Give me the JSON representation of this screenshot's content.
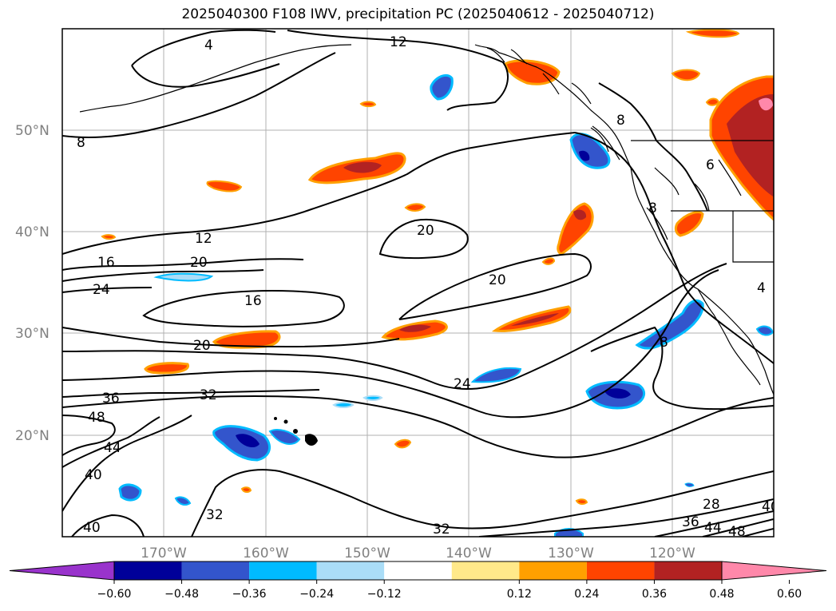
{
  "title": "2025040300 F108 IWV, precipitation PC (2025040612 - 2025040712)",
  "map": {
    "lon_range": [
      -180,
      -110
    ],
    "lat_range": [
      10,
      60
    ],
    "lat_gridlines": [
      {
        "value": 50,
        "label": "50°N"
      },
      {
        "value": 40,
        "label": "40°N"
      },
      {
        "value": 30,
        "label": "30°N"
      },
      {
        "value": 20,
        "label": "20°N"
      }
    ],
    "lon_gridlines": [
      {
        "value": -170,
        "label": "170°W"
      },
      {
        "value": -160,
        "label": "160°W"
      },
      {
        "value": -150,
        "label": "150°W"
      },
      {
        "value": -140,
        "label": "140°W"
      },
      {
        "value": -130,
        "label": "130°W"
      },
      {
        "value": -120,
        "label": "120°W"
      }
    ],
    "contour_labels": [
      "4",
      "12",
      "8",
      "8",
      "6",
      "8",
      "12",
      "20",
      "16",
      "20",
      "24",
      "20",
      "16",
      "20",
      "24",
      "36",
      "32",
      "48",
      "44",
      "40",
      "40",
      "32",
      "28",
      "36",
      "44",
      "48",
      "32",
      "8",
      "4",
      "40"
    ]
  },
  "colorbar": {
    "tick_labels": [
      "−0.60",
      "−0.48",
      "−0.36",
      "−0.24",
      "−0.12",
      "0.12",
      "0.24",
      "0.36",
      "0.48",
      "0.60"
    ],
    "colors": [
      "#9933cc",
      "#000099",
      "#3355cc",
      "#00bbff",
      "#aaddf7",
      "#ffffff",
      "#ffe98a",
      "#ffa000",
      "#ff4400",
      "#b22222",
      "#ff88aa"
    ]
  }
}
